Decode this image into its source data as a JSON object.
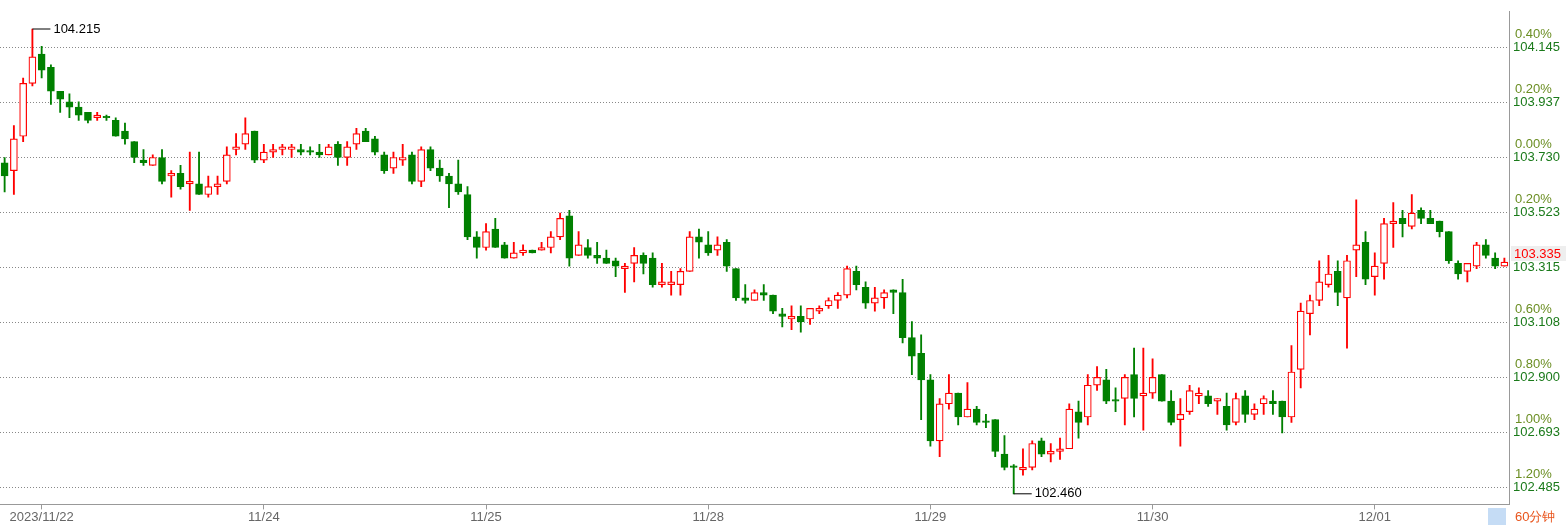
{
  "chart_data": {
    "type": "candlestick",
    "categories": [
      null,
      null,
      null,
      null,
      "2023/11/22",
      null,
      null,
      null,
      null,
      null,
      null,
      null,
      null,
      null,
      null,
      null,
      null,
      null,
      null,
      null,
      null,
      null,
      null,
      null,
      null,
      null,
      null,
      null,
      "11/24",
      null,
      null,
      null,
      null,
      null,
      null,
      null,
      null,
      null,
      null,
      null,
      null,
      null,
      null,
      null,
      null,
      null,
      null,
      null,
      null,
      null,
      null,
      null,
      "11/25",
      null,
      null,
      null,
      null,
      null,
      null,
      null,
      null,
      null,
      null,
      null,
      null,
      null,
      null,
      null,
      null,
      null,
      null,
      null,
      null,
      null,
      null,
      null,
      "11/28",
      null,
      null,
      null,
      null,
      null,
      null,
      null,
      null,
      null,
      null,
      null,
      null,
      null,
      null,
      null,
      null,
      null,
      null,
      null,
      null,
      null,
      null,
      null,
      "11/29",
      null,
      null,
      null,
      null,
      null,
      null,
      null,
      null,
      null,
      null,
      null,
      null,
      null,
      null,
      null,
      null,
      null,
      null,
      null,
      null,
      null,
      null,
      null,
      "11/30",
      null,
      null,
      null,
      null,
      null,
      null,
      null,
      null,
      null,
      null,
      null,
      null,
      null,
      null,
      null,
      null,
      null,
      null,
      null,
      null,
      null,
      null,
      null,
      "12/01",
      null,
      null,
      null,
      null,
      null,
      null,
      null,
      null,
      null,
      null,
      null,
      null,
      null,
      null
    ],
    "ohlc": [
      [
        103.71,
        103.73,
        103.6,
        103.66
      ],
      [
        103.68,
        103.85,
        103.59,
        103.8
      ],
      [
        103.81,
        104.03,
        103.79,
        104.01
      ],
      [
        104.01,
        104.215,
        104.0,
        104.11
      ],
      [
        104.12,
        104.15,
        104.03,
        104.06
      ],
      [
        104.07,
        104.08,
        103.93,
        103.98
      ],
      [
        103.98,
        103.98,
        103.9,
        103.95
      ],
      [
        103.94,
        103.97,
        103.88,
        103.92
      ],
      [
        103.92,
        103.94,
        103.87,
        103.89
      ],
      [
        103.9,
        103.9,
        103.86,
        103.87
      ],
      [
        103.88,
        103.9,
        103.87,
        103.89
      ],
      [
        103.88,
        103.89,
        103.87,
        103.88
      ],
      [
        103.87,
        103.88,
        103.81,
        103.81
      ],
      [
        103.83,
        103.86,
        103.78,
        103.8
      ],
      [
        103.79,
        103.79,
        103.71,
        103.73
      ],
      [
        103.72,
        103.76,
        103.7,
        103.71
      ],
      [
        103.7,
        103.74,
        103.7,
        103.73
      ],
      [
        103.73,
        103.76,
        103.63,
        103.64
      ],
      [
        103.66,
        103.68,
        103.58,
        103.67
      ],
      [
        103.67,
        103.7,
        103.61,
        103.62
      ],
      [
        103.63,
        103.75,
        103.53,
        103.64
      ],
      [
        103.63,
        103.75,
        103.59,
        103.59
      ],
      [
        103.59,
        103.66,
        103.58,
        103.62
      ],
      [
        103.62,
        103.66,
        103.59,
        103.63
      ],
      [
        103.64,
        103.77,
        103.63,
        103.74
      ],
      [
        103.76,
        103.82,
        103.74,
        103.77
      ],
      [
        103.78,
        103.88,
        103.76,
        103.82
      ],
      [
        103.83,
        103.83,
        103.71,
        103.72
      ],
      [
        103.72,
        103.78,
        103.71,
        103.75
      ],
      [
        103.75,
        103.78,
        103.73,
        103.76
      ],
      [
        103.76,
        103.78,
        103.74,
        103.77
      ],
      [
        103.76,
        103.78,
        103.73,
        103.77
      ],
      [
        103.76,
        103.78,
        103.74,
        103.75
      ],
      [
        103.75,
        103.77,
        103.74,
        103.75
      ],
      [
        103.75,
        103.78,
        103.73,
        103.74
      ],
      [
        103.74,
        103.78,
        103.74,
        103.77
      ],
      [
        103.78,
        103.79,
        103.7,
        103.73
      ],
      [
        103.73,
        103.79,
        103.7,
        103.77
      ],
      [
        103.78,
        103.84,
        103.76,
        103.82
      ],
      [
        103.83,
        103.84,
        103.79,
        103.79
      ],
      [
        103.8,
        103.81,
        103.74,
        103.75
      ],
      [
        103.74,
        103.75,
        103.67,
        103.68
      ],
      [
        103.69,
        103.75,
        103.67,
        103.73
      ],
      [
        103.72,
        103.78,
        103.7,
        103.73
      ],
      [
        103.74,
        103.75,
        103.63,
        103.64
      ],
      [
        103.64,
        103.77,
        103.62,
        103.76
      ],
      [
        103.76,
        103.77,
        103.68,
        103.69
      ],
      [
        103.69,
        103.72,
        103.64,
        103.66
      ],
      [
        103.66,
        103.67,
        103.54,
        103.63
      ],
      [
        103.63,
        103.72,
        103.59,
        103.6
      ],
      [
        103.59,
        103.62,
        103.42,
        103.43
      ],
      [
        103.43,
        103.45,
        103.35,
        103.39
      ],
      [
        103.39,
        103.48,
        103.38,
        103.45
      ],
      [
        103.46,
        103.5,
        103.39,
        103.39
      ],
      [
        103.4,
        103.41,
        103.35,
        103.35
      ],
      [
        103.35,
        103.41,
        103.35,
        103.37
      ],
      [
        103.37,
        103.4,
        103.36,
        103.38
      ],
      [
        103.38,
        103.38,
        103.37,
        103.37
      ],
      [
        103.38,
        103.41,
        103.38,
        103.39
      ],
      [
        103.39,
        103.45,
        103.37,
        103.43
      ],
      [
        103.43,
        103.52,
        103.42,
        103.5
      ],
      [
        103.51,
        103.53,
        103.32,
        103.35
      ],
      [
        103.36,
        103.45,
        103.36,
        103.4
      ],
      [
        103.39,
        103.42,
        103.35,
        103.36
      ],
      [
        103.36,
        103.41,
        103.33,
        103.35
      ],
      [
        103.35,
        103.38,
        103.33,
        103.33
      ],
      [
        103.34,
        103.35,
        103.28,
        103.32
      ],
      [
        103.31,
        103.33,
        103.22,
        103.32
      ],
      [
        103.33,
        103.39,
        103.26,
        103.36
      ],
      [
        103.36,
        103.37,
        103.29,
        103.33
      ],
      [
        103.35,
        103.37,
        103.24,
        103.25
      ],
      [
        103.25,
        103.33,
        103.24,
        103.26
      ],
      [
        103.25,
        103.3,
        103.21,
        103.26
      ],
      [
        103.25,
        103.31,
        103.21,
        103.3
      ],
      [
        103.3,
        103.45,
        103.3,
        103.43
      ],
      [
        103.43,
        103.46,
        103.35,
        103.41
      ],
      [
        103.4,
        103.45,
        103.36,
        103.37
      ],
      [
        103.38,
        103.43,
        103.36,
        103.4
      ],
      [
        103.41,
        103.42,
        103.3,
        103.32
      ],
      [
        103.31,
        103.31,
        103.19,
        103.2
      ],
      [
        103.2,
        103.25,
        103.18,
        103.19
      ],
      [
        103.19,
        103.23,
        103.19,
        103.22
      ],
      [
        103.22,
        103.25,
        103.19,
        103.21
      ],
      [
        103.21,
        103.21,
        103.14,
        103.15
      ],
      [
        103.14,
        103.16,
        103.09,
        103.13
      ],
      [
        103.12,
        103.17,
        103.08,
        103.13
      ],
      [
        103.13,
        103.17,
        103.07,
        103.11
      ],
      [
        103.12,
        103.16,
        103.1,
        103.16
      ],
      [
        103.15,
        103.17,
        103.14,
        103.16
      ],
      [
        103.17,
        103.2,
        103.16,
        103.19
      ],
      [
        103.19,
        103.22,
        103.16,
        103.21
      ],
      [
        103.21,
        103.32,
        103.2,
        103.31
      ],
      [
        103.3,
        103.32,
        103.23,
        103.25
      ],
      [
        103.24,
        103.26,
        103.16,
        103.18
      ],
      [
        103.18,
        103.24,
        103.15,
        103.2
      ],
      [
        103.2,
        103.23,
        103.16,
        103.22
      ],
      [
        103.23,
        103.23,
        103.14,
        103.22
      ],
      [
        103.22,
        103.27,
        103.03,
        103.05
      ],
      [
        103.05,
        103.11,
        102.91,
        102.98
      ],
      [
        102.99,
        103.06,
        102.74,
        102.89
      ],
      [
        102.89,
        102.91,
        102.64,
        102.66
      ],
      [
        102.66,
        102.82,
        102.6,
        102.8
      ],
      [
        102.8,
        102.91,
        102.78,
        102.84
      ],
      [
        102.84,
        102.84,
        102.72,
        102.75
      ],
      [
        102.75,
        102.88,
        102.75,
        102.78
      ],
      [
        102.78,
        102.79,
        102.72,
        102.73
      ],
      [
        102.73,
        102.76,
        102.71,
        102.73
      ],
      [
        102.74,
        102.74,
        102.6,
        102.62
      ],
      [
        102.61,
        102.68,
        102.55,
        102.56
      ],
      [
        102.56,
        102.57,
        102.46,
        102.56
      ],
      [
        102.55,
        102.63,
        102.53,
        102.56
      ],
      [
        102.56,
        102.66,
        102.55,
        102.65
      ],
      [
        102.66,
        102.67,
        102.6,
        102.61
      ],
      [
        102.61,
        102.65,
        102.58,
        102.62
      ],
      [
        102.62,
        102.67,
        102.59,
        102.63
      ],
      [
        102.63,
        102.8,
        102.63,
        102.78
      ],
      [
        102.77,
        102.81,
        102.67,
        102.73
      ],
      [
        102.75,
        102.91,
        102.72,
        102.87
      ],
      [
        102.87,
        102.94,
        102.85,
        102.9
      ],
      [
        102.89,
        102.93,
        102.8,
        102.81
      ],
      [
        102.81,
        102.86,
        102.77,
        102.81
      ],
      [
        102.82,
        102.91,
        102.72,
        102.9
      ],
      [
        102.91,
        103.01,
        102.75,
        102.82
      ],
      [
        102.83,
        103.01,
        102.7,
        102.84
      ],
      [
        102.84,
        102.97,
        102.82,
        102.9
      ],
      [
        102.91,
        102.91,
        102.81,
        102.81
      ],
      [
        102.81,
        102.85,
        102.72,
        102.73
      ],
      [
        102.74,
        102.82,
        102.64,
        102.76
      ],
      [
        102.77,
        102.87,
        102.76,
        102.85
      ],
      [
        102.83,
        102.86,
        102.8,
        102.84
      ],
      [
        102.83,
        102.85,
        102.79,
        102.8
      ],
      [
        102.81,
        102.82,
        102.76,
        102.82
      ],
      [
        102.79,
        102.84,
        102.7,
        102.72
      ],
      [
        102.73,
        102.84,
        102.72,
        102.82
      ],
      [
        102.83,
        102.85,
        102.73,
        102.76
      ],
      [
        102.76,
        102.8,
        102.74,
        102.78
      ],
      [
        102.8,
        102.83,
        102.76,
        102.82
      ],
      [
        102.81,
        102.85,
        102.76,
        102.8
      ],
      [
        102.81,
        102.81,
        102.69,
        102.75
      ],
      [
        102.75,
        103.02,
        102.73,
        102.92
      ],
      [
        102.93,
        103.18,
        102.86,
        103.15
      ],
      [
        103.14,
        103.21,
        103.06,
        103.19
      ],
      [
        103.19,
        103.34,
        103.17,
        103.26
      ],
      [
        103.25,
        103.36,
        103.24,
        103.29
      ],
      [
        103.3,
        103.34,
        103.17,
        103.22
      ],
      [
        103.2,
        103.36,
        103.01,
        103.34
      ],
      [
        103.38,
        103.57,
        103.28,
        103.4
      ],
      [
        103.41,
        103.45,
        103.25,
        103.27
      ],
      [
        103.28,
        103.37,
        103.21,
        103.32
      ],
      [
        103.33,
        103.5,
        103.27,
        103.48
      ],
      [
        103.48,
        103.56,
        103.39,
        103.49
      ],
      [
        103.5,
        103.53,
        103.43,
        103.48
      ],
      [
        103.47,
        103.59,
        103.46,
        103.52
      ],
      [
        103.53,
        103.54,
        103.48,
        103.5
      ],
      [
        103.5,
        103.53,
        103.48,
        103.48
      ],
      [
        103.49,
        103.49,
        103.43,
        103.45
      ],
      [
        103.45,
        103.45,
        103.33,
        103.34
      ],
      [
        103.33,
        103.34,
        103.27,
        103.29
      ],
      [
        103.3,
        103.33,
        103.26,
        103.33
      ],
      [
        103.32,
        103.41,
        103.31,
        103.4
      ],
      [
        103.4,
        103.42,
        103.35,
        103.36
      ],
      [
        103.35,
        103.37,
        103.31,
        103.32
      ],
      [
        103.32,
        103.35,
        103.32,
        103.335
      ]
    ],
    "ylim": [
      102.42,
      104.28
    ],
    "yticks": [
      104.145,
      103.937,
      {
        "value": 103.73,
        "label": "103.730"
      },
      103.523,
      103.315,
      103.108,
      {
        "value": 102.9,
        "label": "102.900"
      },
      102.693,
      102.485
    ],
    "y2lim": [
      -1.263,
      0.53
    ],
    "y2ticks": [
      {
        "value": 0.4,
        "label": "0.40%"
      },
      {
        "value": 0.2,
        "label": "0.20%"
      },
      {
        "value": 0,
        "label": "0.00%"
      },
      {
        "value": -0.2,
        "label": "0.20%"
      },
      {
        "value": -0.6,
        "label": "0.60%"
      },
      {
        "value": -0.8,
        "label": "0.80%"
      },
      {
        "value": -1.0,
        "label": "1.00%"
      },
      {
        "value": -1.2,
        "label": "1.20%"
      }
    ],
    "grid": "y",
    "legend": false,
    "annotations": [
      "104.215",
      "102.460",
      "103.335",
      "60分钟"
    ]
  }
}
